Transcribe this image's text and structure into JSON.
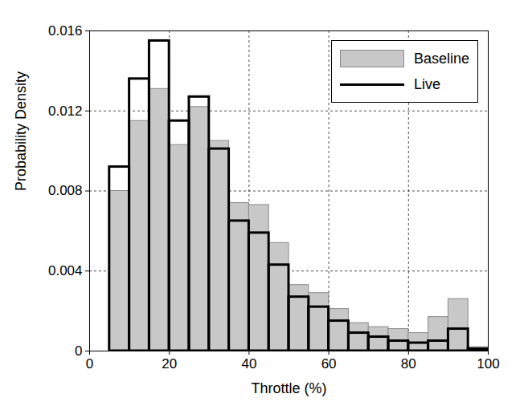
{
  "chart_data": {
    "type": "histogram",
    "x_label": "Throttle (%)",
    "y_label": "Probability Density",
    "bins": [
      5,
      10,
      15,
      20,
      25,
      30,
      35,
      40,
      45,
      50,
      55,
      60,
      65,
      70,
      75,
      80,
      85,
      90,
      95,
      100
    ],
    "series": [
      {
        "name": "Baseline",
        "type": "bar",
        "color": "#c8c8c8",
        "values": [
          0.008,
          0.0115,
          0.0131,
          0.0103,
          0.0122,
          0.0105,
          0.0074,
          0.0073,
          0.0054,
          0.0033,
          0.0029,
          0.0021,
          0.0014,
          0.0012,
          0.0011,
          0.0009,
          0.0017,
          0.0026,
          0.0002
        ]
      },
      {
        "name": "Live",
        "type": "outline",
        "color": "#000000",
        "values": [
          0.0092,
          0.0136,
          0.0155,
          0.0115,
          0.0127,
          0.0101,
          0.0065,
          0.0059,
          0.0043,
          0.0027,
          0.0022,
          0.0015,
          0.0009,
          0.0007,
          0.0005,
          0.0004,
          0.0005,
          0.0011,
          0.0001
        ]
      }
    ],
    "xlim": [
      0,
      100
    ],
    "xticks": [
      0,
      20,
      40,
      60,
      80,
      100
    ],
    "ylim": [
      0,
      0.016
    ],
    "yticks": [
      0,
      0.004,
      0.008,
      0.012,
      0.016
    ],
    "grid": true,
    "legend": "upper right"
  }
}
